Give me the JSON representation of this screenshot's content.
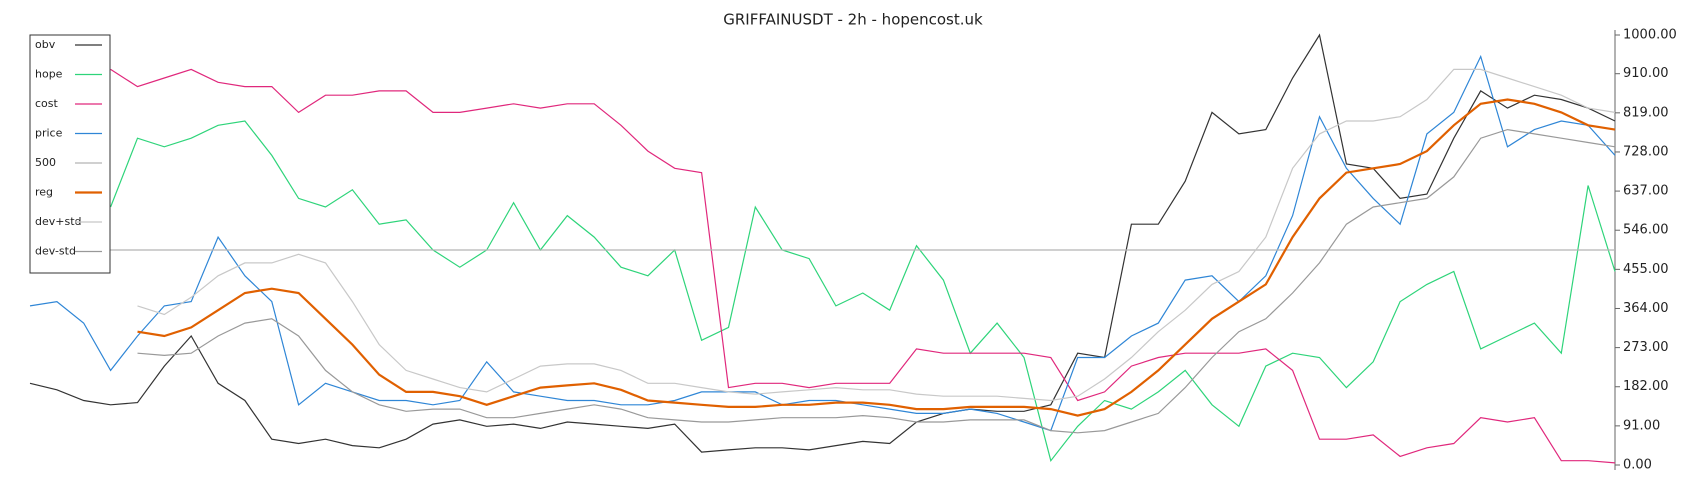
{
  "chart_data": {
    "type": "line",
    "title": "GRIFFAINUSDT - 2h - hopencost.uk",
    "ylim": [
      0,
      1000
    ],
    "yticks": [
      {
        "value": 0,
        "label": "0.00"
      },
      {
        "value": 91,
        "label": "91.00"
      },
      {
        "value": 182,
        "label": "182.00"
      },
      {
        "value": 273,
        "label": "273.00"
      },
      {
        "value": 364,
        "label": "364.00"
      },
      {
        "value": 455,
        "label": "455.00"
      },
      {
        "value": 546,
        "label": "546.00"
      },
      {
        "value": 637,
        "label": "637.00"
      },
      {
        "value": 728,
        "label": "728.00"
      },
      {
        "value": 819,
        "label": "819.00"
      },
      {
        "value": 910,
        "label": "910.00"
      },
      {
        "value": 1000,
        "label": "1000.00"
      }
    ],
    "legend": "upper left",
    "series": [
      {
        "name": "obv",
        "color": "#333333",
        "values": [
          190,
          175,
          150,
          140,
          145,
          230,
          300,
          190,
          150,
          60,
          50,
          60,
          45,
          40,
          60,
          95,
          105,
          90,
          95,
          85,
          100,
          95,
          90,
          85,
          95,
          30,
          35,
          40,
          40,
          35,
          45,
          55,
          50,
          100,
          120,
          130,
          125,
          125,
          140,
          260,
          250,
          560,
          560,
          660,
          820,
          770,
          780,
          900,
          1000,
          700,
          690,
          620,
          630,
          760,
          870,
          830,
          860,
          850,
          830,
          800
        ]
      },
      {
        "name": "hope",
        "color": "#2ed47a",
        "values": [
          null,
          null,
          null,
          600,
          760,
          740,
          760,
          790,
          800,
          720,
          620,
          600,
          640,
          560,
          570,
          500,
          460,
          500,
          610,
          500,
          580,
          530,
          460,
          440,
          500,
          290,
          320,
          600,
          500,
          480,
          370,
          400,
          360,
          510,
          430,
          260,
          330,
          250,
          10,
          90,
          150,
          130,
          170,
          220,
          140,
          90,
          230,
          260,
          250,
          180,
          240,
          380,
          420,
          450,
          270,
          300,
          330,
          260,
          650,
          450
        ]
      },
      {
        "name": "cost",
        "color": "#e0287c",
        "values": [
          null,
          null,
          null,
          920,
          880,
          900,
          920,
          890,
          880,
          880,
          820,
          860,
          860,
          870,
          870,
          820,
          820,
          830,
          840,
          830,
          840,
          840,
          790,
          730,
          690,
          680,
          180,
          190,
          190,
          180,
          190,
          190,
          190,
          270,
          260,
          260,
          260,
          260,
          250,
          150,
          170,
          230,
          250,
          260,
          260,
          260,
          270,
          220,
          60,
          60,
          70,
          20,
          40,
          50,
          110,
          100,
          110,
          10,
          10,
          5
        ]
      },
      {
        "name": "price",
        "color": "#2f86d6",
        "values": [
          370,
          380,
          330,
          220,
          300,
          370,
          380,
          530,
          440,
          380,
          140,
          190,
          170,
          150,
          150,
          140,
          150,
          240,
          170,
          160,
          150,
          150,
          140,
          140,
          150,
          170,
          170,
          170,
          140,
          150,
          150,
          140,
          130,
          120,
          120,
          130,
          120,
          100,
          80,
          250,
          250,
          300,
          330,
          430,
          440,
          380,
          440,
          580,
          810,
          690,
          620,
          560,
          770,
          820,
          950,
          740,
          780,
          800,
          790,
          720
        ]
      },
      {
        "name": "500",
        "color": "#b4b4b4",
        "values": [
          500,
          500,
          500,
          500,
          500,
          500,
          500,
          500,
          500,
          500,
          500,
          500,
          500,
          500,
          500,
          500,
          500,
          500,
          500,
          500,
          500,
          500,
          500,
          500,
          500,
          500,
          500,
          500,
          500,
          500,
          500,
          500,
          500,
          500,
          500,
          500,
          500,
          500,
          500,
          500,
          500,
          500,
          500,
          500,
          500,
          500,
          500,
          500,
          500,
          500,
          500,
          500,
          500,
          500,
          500,
          500,
          500,
          500,
          500,
          500
        ]
      },
      {
        "name": "reg",
        "color": "#e06000",
        "values": [
          null,
          null,
          null,
          null,
          310,
          300,
          320,
          360,
          400,
          410,
          400,
          340,
          280,
          210,
          170,
          170,
          160,
          140,
          160,
          180,
          185,
          190,
          175,
          150,
          145,
          140,
          135,
          135,
          140,
          140,
          145,
          145,
          140,
          130,
          130,
          135,
          135,
          135,
          130,
          115,
          130,
          170,
          220,
          280,
          340,
          380,
          420,
          530,
          620,
          680,
          690,
          700,
          730,
          790,
          840,
          850,
          840,
          820,
          790,
          780
        ]
      },
      {
        "name": "dev+std",
        "color": "#c8c8c8",
        "values": [
          null,
          null,
          null,
          null,
          370,
          350,
          390,
          440,
          470,
          470,
          490,
          470,
          380,
          280,
          220,
          200,
          180,
          170,
          200,
          230,
          235,
          235,
          220,
          190,
          190,
          180,
          170,
          165,
          170,
          175,
          180,
          175,
          175,
          165,
          160,
          160,
          160,
          155,
          150,
          160,
          200,
          250,
          310,
          360,
          420,
          450,
          530,
          690,
          770,
          800,
          800,
          810,
          850,
          920,
          920,
          900,
          880,
          860,
          830,
          820
        ]
      },
      {
        "name": "dev-std",
        "color": "#999999",
        "values": [
          null,
          null,
          null,
          null,
          260,
          255,
          260,
          300,
          330,
          340,
          300,
          220,
          170,
          140,
          125,
          130,
          130,
          110,
          110,
          120,
          130,
          140,
          130,
          110,
          105,
          100,
          100,
          105,
          110,
          110,
          110,
          115,
          110,
          100,
          100,
          105,
          105,
          105,
          80,
          75,
          80,
          100,
          120,
          180,
          250,
          310,
          340,
          400,
          470,
          560,
          600,
          610,
          620,
          670,
          760,
          780,
          770,
          760,
          750,
          740
        ]
      }
    ]
  }
}
